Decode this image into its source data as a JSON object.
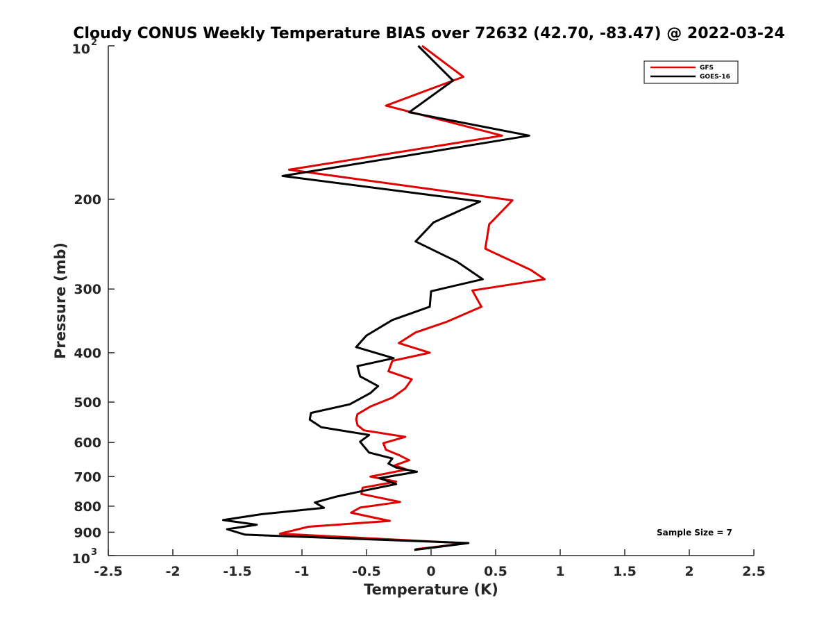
{
  "chart_data": {
    "type": "line",
    "title": "Cloudy CONUS Weekly Temperature BIAS over 72632 (42.70, -83.47) @ 2022-03-24",
    "xlabel": "Temperature (K)",
    "ylabel": "Pressure (mb)",
    "xlim": [
      -2.5,
      2.5
    ],
    "ylim": [
      1000,
      100
    ],
    "y_scale": "log",
    "y_reversed": true,
    "grid": false,
    "legend_position": "top-right",
    "x_ticks": [
      "-2.5",
      "-2",
      "-1.5",
      "-1",
      "-0.5",
      "0",
      "0.5",
      "1",
      "1.5",
      "2",
      "2.5"
    ],
    "x_tick_values": [
      -2.5,
      -2,
      -1.5,
      -1,
      -0.5,
      0,
      0.5,
      1,
      1.5,
      2,
      2.5
    ],
    "y_ticks": [
      {
        "value": 100,
        "base": "10",
        "exp": "2"
      },
      {
        "value": 200,
        "label": "200"
      },
      {
        "value": 300,
        "label": "300"
      },
      {
        "value": 400,
        "label": "400"
      },
      {
        "value": 500,
        "label": "500"
      },
      {
        "value": 600,
        "label": "600"
      },
      {
        "value": 700,
        "label": "700"
      },
      {
        "value": 800,
        "label": "800"
      },
      {
        "value": 900,
        "label": "900"
      },
      {
        "value": 1000,
        "base": "10",
        "exp": "3"
      }
    ],
    "annotation": "Sample Size = 7",
    "series": [
      {
        "name": "GFS",
        "color": "#e00000",
        "points": [
          [
            -0.07,
            100
          ],
          [
            0.25,
            115
          ],
          [
            -0.35,
            131
          ],
          [
            0.55,
            150
          ],
          [
            -1.1,
            175
          ],
          [
            0.63,
            201
          ],
          [
            0.45,
            224
          ],
          [
            0.42,
            250
          ],
          [
            0.77,
            275
          ],
          [
            0.88,
            287
          ],
          [
            0.32,
            302
          ],
          [
            0.39,
            325
          ],
          [
            0.12,
            348
          ],
          [
            -0.12,
            365
          ],
          [
            -0.25,
            383
          ],
          [
            -0.01,
            400
          ],
          [
            -0.3,
            415
          ],
          [
            -0.33,
            435
          ],
          [
            -0.15,
            451
          ],
          [
            -0.2,
            470
          ],
          [
            -0.3,
            490
          ],
          [
            -0.47,
            510
          ],
          [
            -0.57,
            528
          ],
          [
            -0.58,
            540
          ],
          [
            -0.57,
            555
          ],
          [
            -0.52,
            568
          ],
          [
            -0.2,
            585
          ],
          [
            -0.37,
            602
          ],
          [
            -0.35,
            620
          ],
          [
            -0.25,
            635
          ],
          [
            -0.17,
            650
          ],
          [
            -0.28,
            665
          ],
          [
            -0.19,
            678
          ],
          [
            -0.47,
            700
          ],
          [
            -0.27,
            716
          ],
          [
            -0.53,
            736
          ],
          [
            -0.54,
            757
          ],
          [
            -0.24,
            785
          ],
          [
            -0.55,
            805
          ],
          [
            -0.62,
            824
          ],
          [
            -0.32,
            855
          ],
          [
            -0.95,
            878
          ],
          [
            -1.17,
            906
          ],
          [
            0.27,
            946
          ],
          [
            -0.12,
            972
          ]
        ]
      },
      {
        "name": "GOES-16",
        "color": "#000000",
        "points": [
          [
            -0.1,
            100
          ],
          [
            0.17,
            117
          ],
          [
            -0.17,
            135
          ],
          [
            0.76,
            150
          ],
          [
            -1.15,
            180
          ],
          [
            0.38,
            202
          ],
          [
            0.02,
            222
          ],
          [
            -0.12,
            242
          ],
          [
            0.2,
            265
          ],
          [
            0.4,
            287
          ],
          [
            0.0,
            303
          ],
          [
            -0.01,
            325
          ],
          [
            -0.3,
            345
          ],
          [
            -0.5,
            370
          ],
          [
            -0.58,
            390
          ],
          [
            -0.29,
            410
          ],
          [
            -0.57,
            425
          ],
          [
            -0.55,
            445
          ],
          [
            -0.41,
            465
          ],
          [
            -0.47,
            480
          ],
          [
            -0.63,
            505
          ],
          [
            -0.93,
            525
          ],
          [
            -0.94,
            541
          ],
          [
            -0.85,
            560
          ],
          [
            -0.48,
            580
          ],
          [
            -0.55,
            598
          ],
          [
            -0.51,
            615
          ],
          [
            -0.48,
            628
          ],
          [
            -0.3,
            645
          ],
          [
            -0.33,
            660
          ],
          [
            -0.27,
            672
          ],
          [
            -0.11,
            685
          ],
          [
            -0.4,
            705
          ],
          [
            -0.27,
            724
          ],
          [
            -0.51,
            745
          ],
          [
            -0.74,
            767
          ],
          [
            -0.9,
            787
          ],
          [
            -0.83,
            806
          ],
          [
            -1.32,
            830
          ],
          [
            -1.61,
            852
          ],
          [
            -1.35,
            870
          ],
          [
            -1.58,
            888
          ],
          [
            -1.44,
            910
          ],
          [
            0.29,
            945
          ],
          [
            -0.13,
            975
          ]
        ]
      }
    ]
  }
}
